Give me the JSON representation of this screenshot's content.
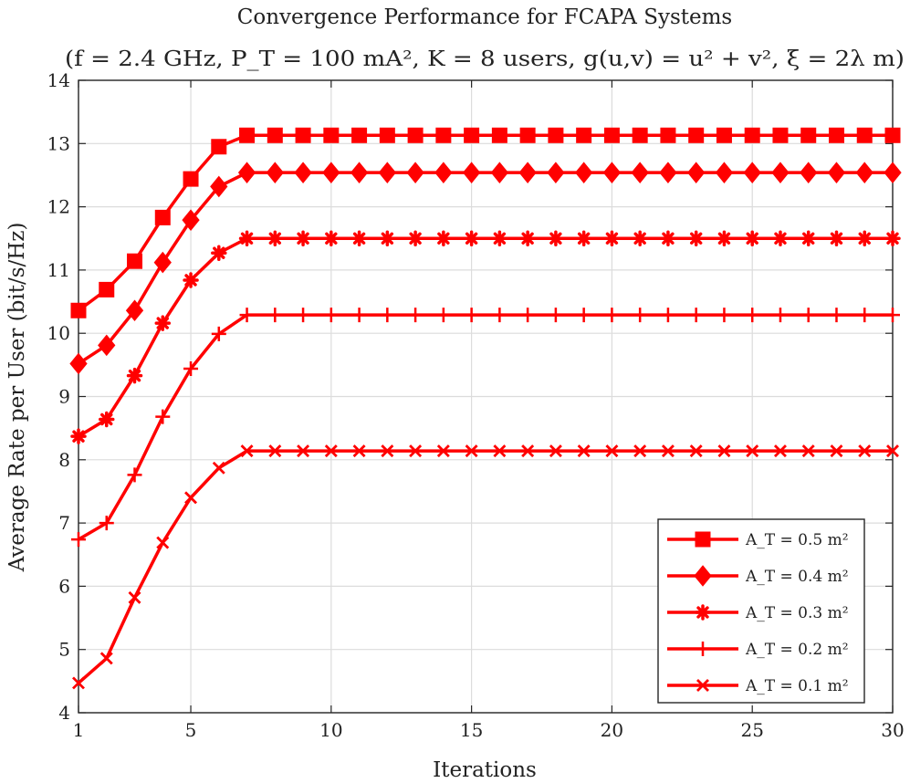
{
  "chart_data": {
    "type": "line",
    "title": "Convergence Performance for FCAPA Systems",
    "subtitle": "(f = 2.4 GHz, P_T = 100 mA², K = 8 users, g(u,v) = u² + v², ξ = 2λ m)",
    "xlabel": "Iterations",
    "ylabel": "Average Rate per User (bit/s/Hz)",
    "xlim": [
      1,
      30
    ],
    "ylim": [
      4,
      14
    ],
    "xticks": [
      1,
      5,
      10,
      15,
      20,
      25,
      30
    ],
    "yticks": [
      4,
      5,
      6,
      7,
      8,
      9,
      10,
      11,
      12,
      13,
      14
    ],
    "grid": true,
    "legend_position": "bottom-right",
    "line_color": "#ff0000",
    "x": [
      1,
      2,
      3,
      4,
      5,
      6,
      7,
      8,
      9,
      10,
      11,
      12,
      13,
      14,
      15,
      16,
      17,
      18,
      19,
      20,
      21,
      22,
      23,
      24,
      25,
      26,
      27,
      28,
      29,
      30
    ],
    "series": [
      {
        "name": "A_T = 0.5 m²",
        "marker": "square",
        "values": [
          10.36,
          10.69,
          11.14,
          11.83,
          12.44,
          12.95,
          13.13,
          13.13,
          13.13,
          13.13,
          13.13,
          13.13,
          13.13,
          13.13,
          13.13,
          13.13,
          13.13,
          13.13,
          13.13,
          13.13,
          13.13,
          13.13,
          13.13,
          13.13,
          13.13,
          13.13,
          13.13,
          13.13,
          13.13,
          13.13
        ]
      },
      {
        "name": "A_T = 0.4 m²",
        "marker": "diamond",
        "values": [
          9.52,
          9.81,
          10.36,
          11.12,
          11.79,
          12.32,
          12.54,
          12.54,
          12.54,
          12.54,
          12.54,
          12.54,
          12.54,
          12.54,
          12.54,
          12.54,
          12.54,
          12.54,
          12.54,
          12.54,
          12.54,
          12.54,
          12.54,
          12.54,
          12.54,
          12.54,
          12.54,
          12.54,
          12.54,
          12.54
        ]
      },
      {
        "name": "A_T = 0.3 m²",
        "marker": "asterisk",
        "values": [
          8.37,
          8.64,
          9.33,
          10.16,
          10.84,
          11.27,
          11.5,
          11.5,
          11.5,
          11.5,
          11.5,
          11.5,
          11.5,
          11.5,
          11.5,
          11.5,
          11.5,
          11.5,
          11.5,
          11.5,
          11.5,
          11.5,
          11.5,
          11.5,
          11.5,
          11.5,
          11.5,
          11.5,
          11.5,
          11.5
        ]
      },
      {
        "name": "A_T = 0.2 m²",
        "marker": "plus",
        "values": [
          6.74,
          7.0,
          7.76,
          8.68,
          9.44,
          9.99,
          10.29,
          10.29,
          10.29,
          10.29,
          10.29,
          10.29,
          10.29,
          10.29,
          10.29,
          10.29,
          10.29,
          10.29,
          10.29,
          10.29,
          10.29,
          10.29,
          10.29,
          10.29,
          10.29,
          10.29,
          10.29,
          10.29,
          10.29,
          10.29
        ]
      },
      {
        "name": "A_T = 0.1 m²",
        "marker": "cross",
        "values": [
          4.47,
          4.86,
          5.82,
          6.69,
          7.4,
          7.87,
          8.14,
          8.14,
          8.14,
          8.14,
          8.14,
          8.14,
          8.14,
          8.14,
          8.14,
          8.14,
          8.14,
          8.14,
          8.14,
          8.14,
          8.14,
          8.14,
          8.14,
          8.14,
          8.14,
          8.14,
          8.14,
          8.14,
          8.14,
          8.14
        ]
      }
    ]
  }
}
